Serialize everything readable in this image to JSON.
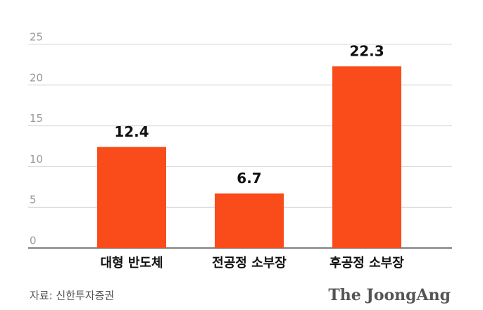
{
  "chart_data": {
    "type": "bar",
    "categories": [
      "대형 반도체",
      "전공정 소부장",
      "후공정 소부장"
    ],
    "values": [
      12.4,
      6.7,
      22.3
    ],
    "color": "#fa4b1b",
    "ylim": [
      0,
      25
    ],
    "yticks": [
      0,
      5,
      10,
      15,
      20,
      25
    ],
    "grid": true,
    "source": "자료: 신한투자증권",
    "brand": "The JoongAng"
  }
}
